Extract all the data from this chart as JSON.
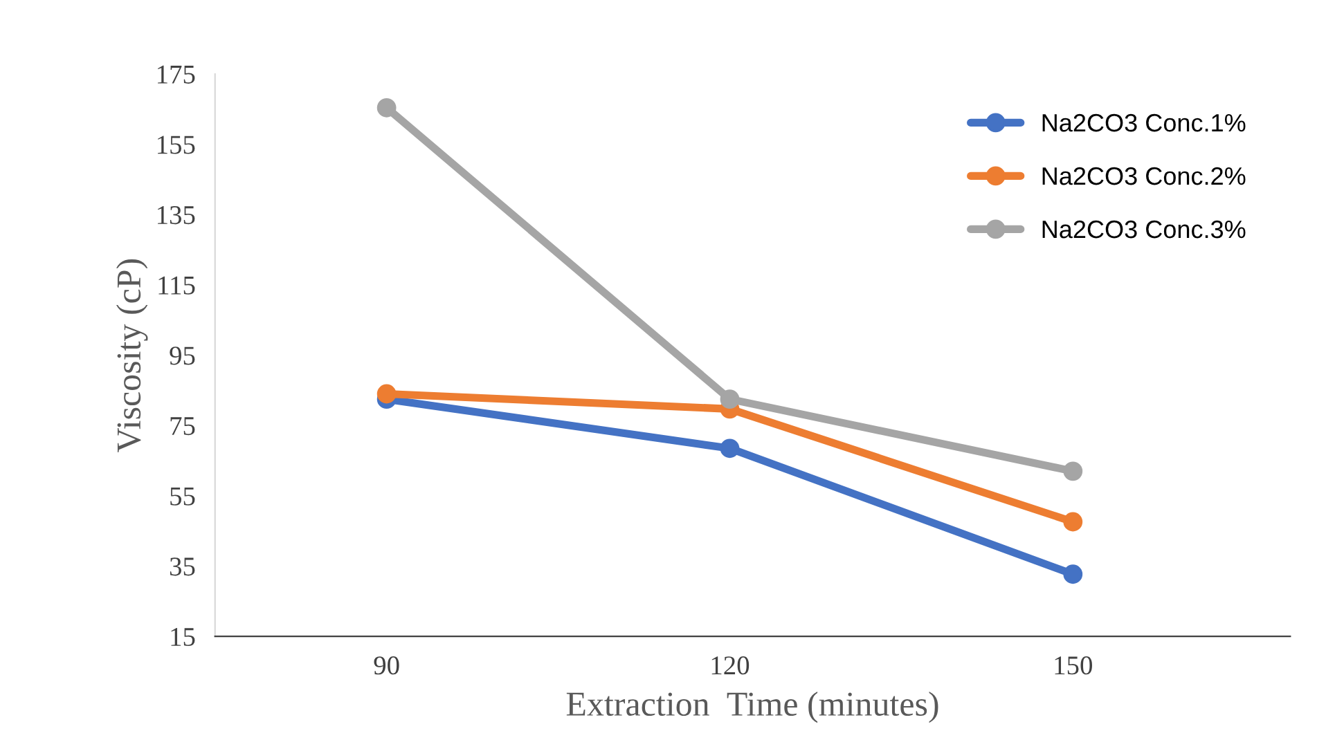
{
  "chart_data": {
    "type": "line",
    "xlabel": "Extraction  Time (minutes)",
    "ylabel": "Viscosity (cP)",
    "x": [
      90,
      120,
      150
    ],
    "xlim": [
      75,
      169
    ],
    "xticks": [
      90,
      120,
      150
    ],
    "series": [
      {
        "name": "Na2CO3 Conc.1%",
        "color": "#4472c4",
        "values": [
          82.5,
          68.5,
          32.7
        ]
      },
      {
        "name": "Na2CO3 Conc.2%",
        "color": "#ed7d31",
        "values": [
          84,
          79.7,
          47.6
        ]
      },
      {
        "name": "Na2CO3 Conc.3%",
        "color": "#a5a5a5",
        "values": [
          165.4,
          82.5,
          62
        ]
      }
    ],
    "ylim": [
      15,
      175
    ],
    "yticks": [
      15,
      35,
      55,
      75,
      95,
      115,
      135,
      155,
      175
    ],
    "grid": false,
    "legend": "top right",
    "marker": "circle",
    "line_style": "solid"
  }
}
